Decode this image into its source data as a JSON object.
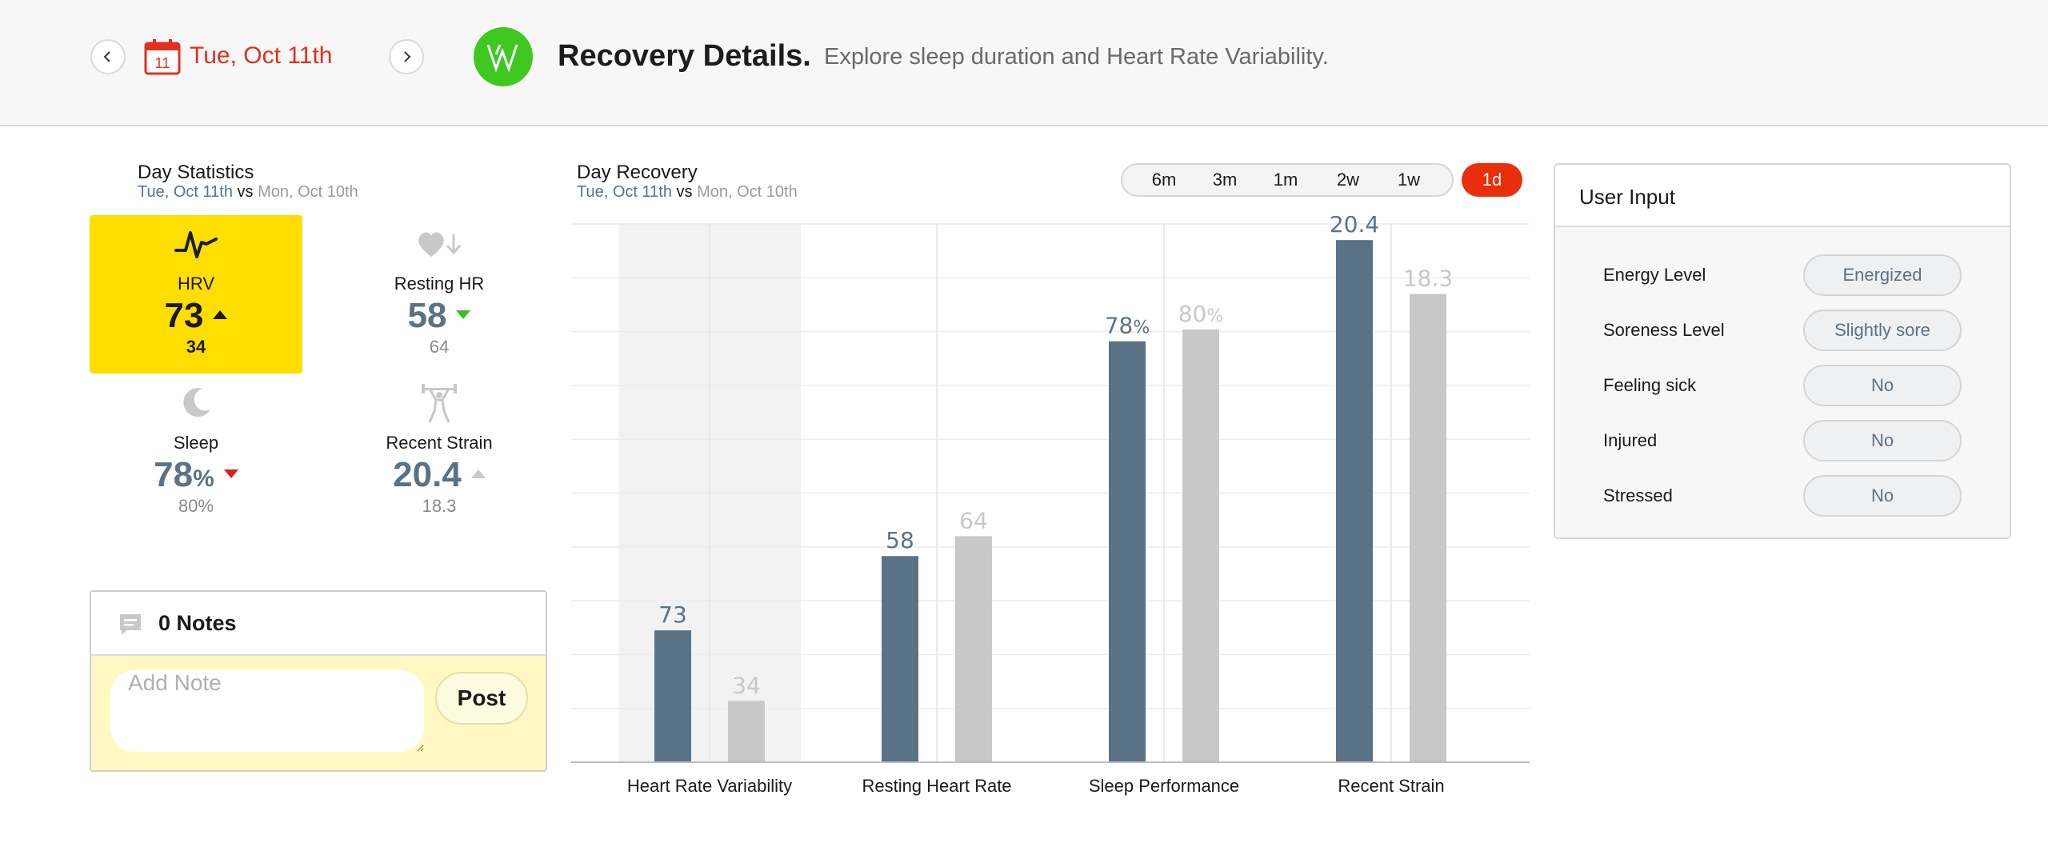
{
  "header": {
    "date": "Tue, Oct 11th",
    "calendar_day": "11",
    "title": "Recovery Details.",
    "subtitle": "Explore sleep duration and Heart Rate Variability."
  },
  "day_statistics": {
    "title": "Day Statistics",
    "today": "Tue, Oct 11th",
    "vs": "vs",
    "previous": "Mon, Oct 10th",
    "tiles": [
      {
        "label": "HRV",
        "value": "73",
        "unit": "",
        "prev": "34",
        "trend": "up",
        "icon": "hrv-pulse-icon"
      },
      {
        "label": "Resting HR",
        "value": "58",
        "unit": "",
        "prev": "64",
        "trend": "down",
        "icon": "heart-down-icon"
      },
      {
        "label": "Sleep",
        "value": "78",
        "unit": "%",
        "prev": "80%",
        "trend": "down",
        "icon": "moon-icon"
      },
      {
        "label": "Recent Strain",
        "value": "20.4",
        "unit": "",
        "prev": "18.3",
        "trend": "up",
        "icon": "weightlifter-icon"
      }
    ]
  },
  "notes": {
    "title": "0 Notes",
    "placeholder": "Add Note",
    "post_label": "Post"
  },
  "day_recovery": {
    "title": "Day Recovery",
    "today": "Tue, Oct 11th",
    "vs": "vs",
    "previous": "Mon, Oct 10th",
    "ranges": [
      "6m",
      "3m",
      "1m",
      "2w",
      "1w"
    ],
    "active_range": "1d"
  },
  "chart_data": {
    "type": "bar",
    "categories": [
      "Heart Rate Variability",
      "Resting Heart Rate",
      "Sleep Performance",
      "Recent Strain"
    ],
    "series": [
      {
        "values": [
          73,
          58,
          78,
          20.4
        ],
        "labels": [
          "73",
          "58",
          "78%",
          "20.4"
        ],
        "color": "#5a7286"
      },
      {
        "values": [
          34,
          64,
          80,
          18.3
        ],
        "labels": [
          "34",
          "64",
          "80%",
          "18.3"
        ],
        "color": "#c8c8c8"
      }
    ],
    "normalized_heights": [
      [
        0.245,
        0.383,
        0.782,
        0.97
      ],
      [
        0.114,
        0.42,
        0.804,
        0.87
      ]
    ],
    "highlighted_category": "Heart Rate Variability"
  },
  "user_input": {
    "title": "User Input",
    "rows": [
      {
        "label": "Energy Level",
        "value": "Energized"
      },
      {
        "label": "Soreness Level",
        "value": "Slightly sore"
      },
      {
        "label": "Feeling sick",
        "value": "No"
      },
      {
        "label": "Injured",
        "value": "No"
      },
      {
        "label": "Stressed",
        "value": "No"
      }
    ]
  },
  "colors": {
    "accent_red": "#e0301e",
    "brand_green": "#3fc81f",
    "highlight_yellow": "#ffde00",
    "today_bar": "#5a7286",
    "previous_bar": "#c8c8c8"
  }
}
